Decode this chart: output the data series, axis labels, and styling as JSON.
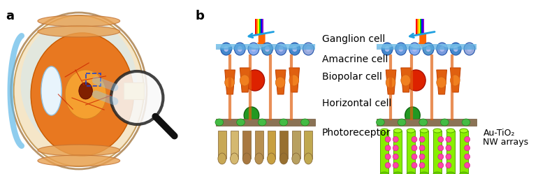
{
  "panel_a_label": "a",
  "panel_b_label": "b",
  "cell_labels": [
    "Ganglion cell",
    "Amacrine cell",
    "Biopolar cell",
    "Horizontal cell",
    "Photoreceptor"
  ],
  "au_tio2_label": "Au-TiO₂",
  "nw_arrays_label": "NW arrays",
  "background_color": "#ffffff",
  "label_fontsize": 14,
  "cell_label_fontsize": 10,
  "annotation_fontsize": 9,
  "panel_label_fontsize": 13,
  "panel_label_fontweight": "bold"
}
